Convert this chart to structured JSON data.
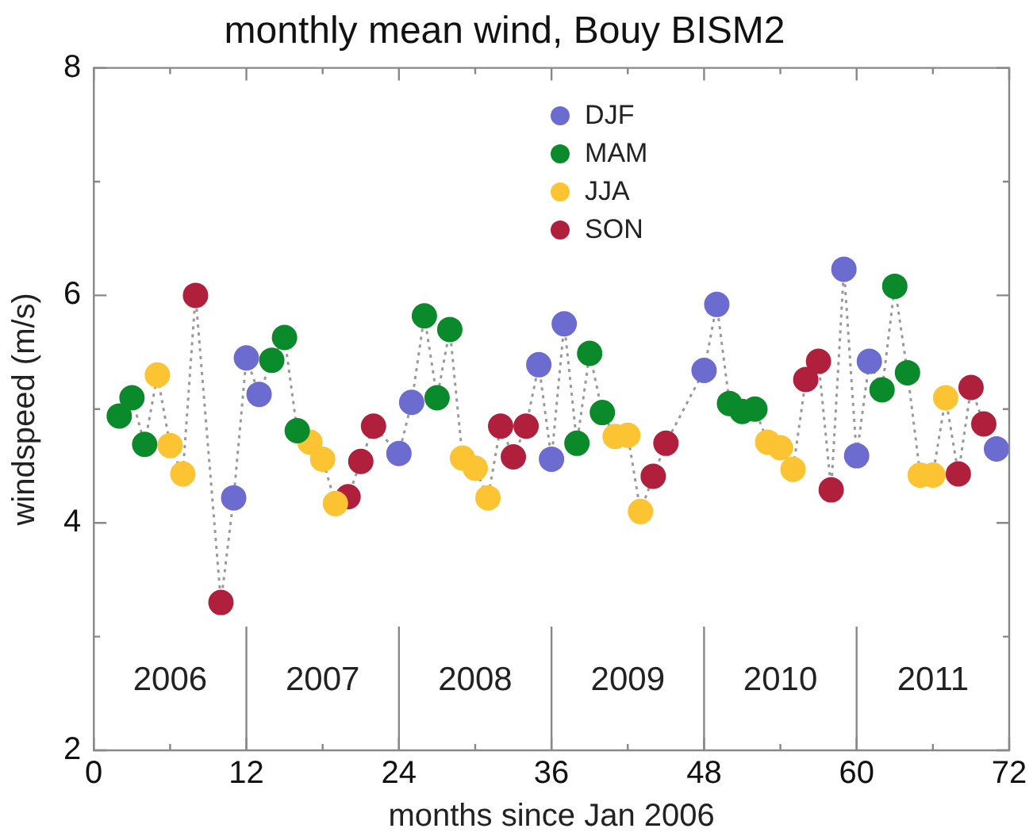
{
  "chart_data": {
    "type": "scatter",
    "title": "monthly mean wind, Bouy BISM2",
    "xlabel": "months since Jan 2006",
    "ylabel": "windspeed (m/s)",
    "xlim": [
      0,
      72
    ],
    "xticks": [
      0,
      {
        "value": 6,
        "label": null
      },
      12,
      {
        "value": 18,
        "label": null
      },
      24,
      {
        "value": 30,
        "label": null
      },
      36,
      {
        "value": 42,
        "label": null
      },
      48,
      {
        "value": 54,
        "label": null
      },
      60,
      {
        "value": 66,
        "label": null
      },
      72
    ],
    "ylim": [
      2,
      8
    ],
    "yticks": [
      2,
      {
        "value": 3,
        "label": null
      },
      4,
      {
        "value": 5,
        "label": null
      },
      6,
      {
        "value": 7,
        "label": null
      },
      8
    ],
    "grid": false,
    "legend": "top",
    "series": [
      {
        "type": "line",
        "color": "#999999",
        "line_style": "dotted",
        "marker": "none",
        "x": [
          2,
          3,
          4,
          5,
          6,
          7,
          8,
          10,
          11,
          12,
          13,
          14,
          15,
          16,
          17,
          18,
          19,
          20,
          21,
          22,
          24,
          25,
          26,
          27,
          28,
          29,
          30,
          31,
          32,
          33,
          34,
          35,
          36,
          37,
          38,
          39,
          40,
          41,
          42,
          43,
          44,
          45,
          48,
          49,
          50,
          51,
          52,
          53,
          54,
          55,
          56,
          57,
          58,
          59,
          60,
          61,
          62,
          63,
          64,
          65,
          66,
          67,
          68,
          69,
          70,
          71
        ],
        "values": [
          4.94,
          5.1,
          4.69,
          5.3,
          4.68,
          4.43,
          6.0,
          3.3,
          4.22,
          5.45,
          5.13,
          5.43,
          5.63,
          4.81,
          4.71,
          4.56,
          4.17,
          4.23,
          4.54,
          4.85,
          4.61,
          5.06,
          5.82,
          5.1,
          5.7,
          4.57,
          4.48,
          4.22,
          4.85,
          4.58,
          4.85,
          5.39,
          4.56,
          5.75,
          4.7,
          5.49,
          4.97,
          4.76,
          4.77,
          4.1,
          4.41,
          4.7,
          5.34,
          5.92,
          5.05,
          4.98,
          5.0,
          4.71,
          4.66,
          4.47,
          5.26,
          5.42,
          4.29,
          6.23,
          4.59,
          5.42,
          5.17,
          6.08,
          5.32,
          4.42,
          4.42,
          5.1,
          4.43,
          5.19,
          4.87,
          4.65
        ]
      },
      {
        "name": "DJF",
        "color": "#6b6bd0",
        "marker": "circle",
        "x": [
          11,
          12,
          13,
          24,
          25,
          35,
          36,
          37,
          48,
          49,
          59,
          60,
          61,
          71
        ],
        "values": [
          4.22,
          5.45,
          5.13,
          4.61,
          5.06,
          5.39,
          4.56,
          5.75,
          5.34,
          5.92,
          6.23,
          4.59,
          5.42,
          4.65
        ]
      },
      {
        "name": "MAM",
        "color": "#0a8a2a",
        "marker": "circle",
        "x": [
          2,
          3,
          4,
          14,
          15,
          16,
          26,
          27,
          28,
          38,
          39,
          40,
          50,
          51,
          52,
          62,
          63,
          64
        ],
        "values": [
          4.94,
          5.1,
          4.69,
          5.43,
          5.63,
          4.81,
          5.82,
          5.1,
          5.7,
          4.7,
          5.49,
          4.97,
          5.05,
          4.98,
          5.0,
          5.17,
          6.08,
          5.32
        ]
      },
      {
        "name": "JJA",
        "color": "#fcc433",
        "marker": "circle",
        "x": [
          5,
          6,
          7,
          17,
          18,
          19,
          29,
          30,
          31,
          41,
          42,
          43,
          53,
          54,
          55,
          65,
          66,
          67
        ],
        "values": [
          5.3,
          4.68,
          4.43,
          4.71,
          4.56,
          4.17,
          4.57,
          4.48,
          4.22,
          4.76,
          4.77,
          4.1,
          4.71,
          4.66,
          4.47,
          4.42,
          4.42,
          5.1
        ]
      },
      {
        "name": "SON",
        "color": "#b0203c",
        "marker": "circle",
        "x": [
          8,
          10,
          20,
          21,
          22,
          32,
          33,
          34,
          44,
          45,
          56,
          57,
          58,
          68,
          69,
          70
        ],
        "values": [
          6.0,
          3.3,
          4.23,
          4.54,
          4.85,
          4.85,
          4.58,
          4.85,
          4.41,
          4.7,
          5.26,
          5.42,
          4.29,
          4.43,
          5.19,
          4.87
        ]
      }
    ],
    "annotations": [
      "2006",
      "2007",
      "2008",
      "2009",
      "2010",
      "2011"
    ],
    "ref_lines": [
      {
        "axis": "x",
        "value": 12
      },
      {
        "axis": "x",
        "value": 24
      },
      {
        "axis": "x",
        "value": 36
      },
      {
        "axis": "x",
        "value": 48
      },
      {
        "axis": "x",
        "value": 60
      }
    ]
  }
}
